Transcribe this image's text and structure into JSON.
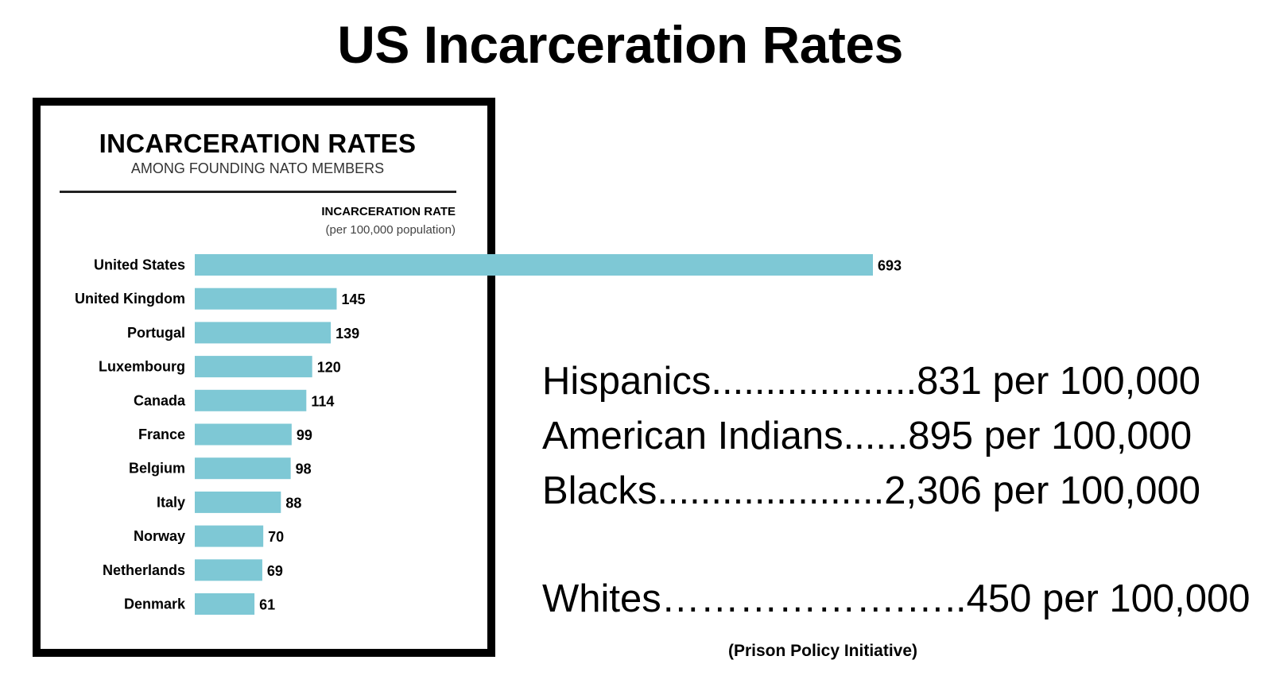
{
  "slide": {
    "title": "US Incarceration Rates",
    "source": "(Prison Policy Initiative)"
  },
  "stats": [
    {
      "text": "Hispanics...................831 per 100,000"
    },
    {
      "text": "American Indians......895 per 100,000"
    },
    {
      "text": "Blacks.....................2,306 per 100,000"
    },
    {
      "text": "Whites……………….…..450 per 100,000"
    }
  ],
  "colors": {
    "bar": "#7ec8d5",
    "frame": "#000000",
    "text": "#000000"
  },
  "chart_data": {
    "type": "bar",
    "orientation": "horizontal",
    "title": "INCARCERATION RATES",
    "subtitle": "AMONG FOUNDING NATO MEMBERS",
    "xlabel": "INCARCERATION RATE",
    "xlabel_sub": "(per 100,000 population)",
    "ylabel": "",
    "categories": [
      "United States",
      "United Kingdom",
      "Portugal",
      "Luxembourg",
      "Canada",
      "France",
      "Belgium",
      "Italy",
      "Norway",
      "Netherlands",
      "Denmark"
    ],
    "values": [
      693,
      145,
      139,
      120,
      114,
      99,
      98,
      88,
      70,
      69,
      61
    ],
    "data_labels": [
      "693",
      "145",
      "139",
      "120",
      "114",
      "99",
      "98",
      "88",
      "70",
      "69",
      "61"
    ],
    "xlim": [
      0,
      693
    ],
    "grid": false,
    "legend": "none"
  }
}
